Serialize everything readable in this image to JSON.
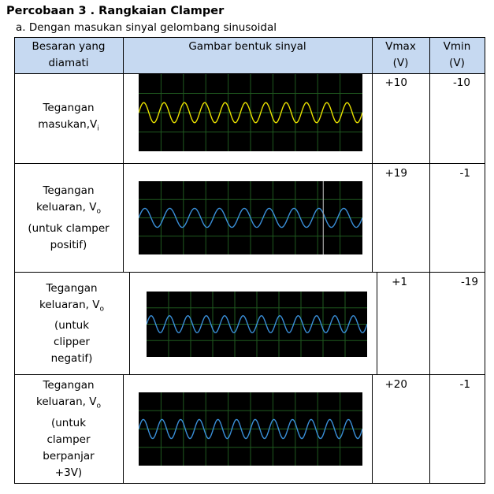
{
  "title": "Percobaan 3 .  Rangkaian Clamper",
  "subtitle": "a. Dengan masukan sinyal gelombang sinusoidal",
  "table": {
    "headers": {
      "besaran": [
        "Besaran yang",
        "diamati"
      ],
      "gambar": "Gambar bentuk sinyal",
      "vmax": [
        "Vmax",
        "(V)"
      ],
      "vmin": [
        "Vmin",
        "(V)"
      ]
    },
    "rows": [
      {
        "label": [
          "Tegangan",
          "masukan,V",
          "i"
        ],
        "vmax": "+10",
        "vmin": "-10",
        "trace_color": "#e8e000"
      },
      {
        "label": [
          "Tegangan",
          "keluaran, V",
          "o",
          "(untuk clamper",
          "positif)"
        ],
        "vmax": "+19",
        "vmin": "-1",
        "trace_color": "#3a8fd8"
      },
      {
        "label": [
          "Tegangan",
          "keluaran, V",
          "o",
          "(untuk",
          "clipper",
          "negatif)"
        ],
        "vmax": "+1",
        "vmin": "-19",
        "trace_color": "#3a8fd8"
      },
      {
        "label": [
          "Tegangan",
          "keluaran, V",
          "o",
          "(untuk",
          "clamper",
          "berpanjar",
          "+3V)"
        ],
        "vmax": "+20",
        "vmin": "-1",
        "trace_color": "#3a8fd8"
      }
    ]
  },
  "colors": {
    "header_bg": "#c6d9f1",
    "scope_bg": "#000000",
    "scope_grid": "#1f5a1f"
  }
}
